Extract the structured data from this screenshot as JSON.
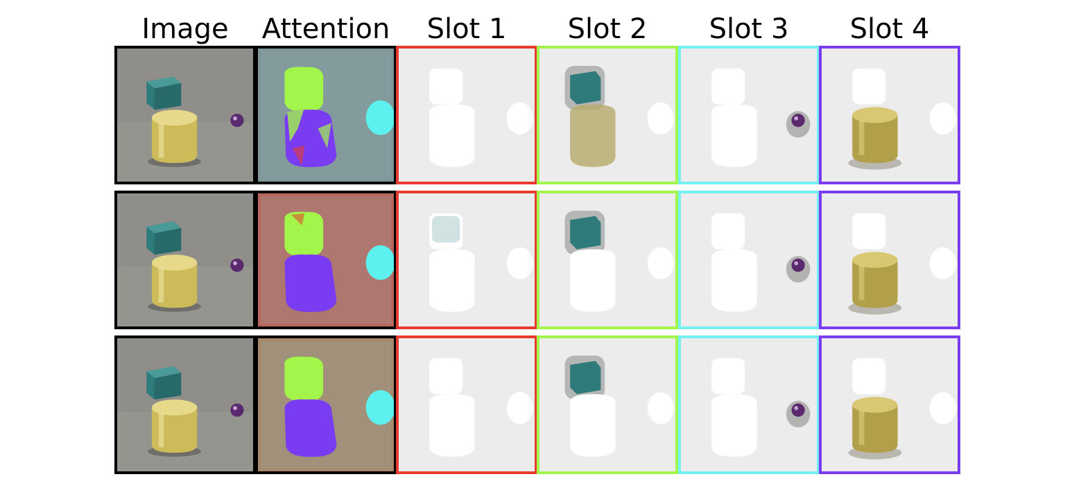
{
  "columns": [
    {
      "id": "image",
      "label": "Image",
      "frame_color": "#000000"
    },
    {
      "id": "attention",
      "label": "Attention",
      "frame_color": "#000000"
    },
    {
      "id": "slot1",
      "label": "Slot 1",
      "frame_color": "#e63b2e"
    },
    {
      "id": "slot2",
      "label": "Slot 2",
      "frame_color": "#a3f54b"
    },
    {
      "id": "slot3",
      "label": "Slot 3",
      "frame_color": "#72f0f2"
    },
    {
      "id": "slot4",
      "label": "Slot 4",
      "frame_color": "#7a3cf0"
    }
  ],
  "rows": 3,
  "colors": {
    "scene_bg": "#8f8e8a",
    "cube": "#2f7a7a",
    "cylinder": "#cdbb5a",
    "sphere": "#5b2a6e",
    "mask_white": "#ffffff",
    "slot_bg": "#e4e4e4",
    "att_bg_row1": "#7f9599",
    "att_bg_row2": "#b8665e",
    "att_bg_row3": "#a8876b",
    "att_lime": "#a3f54b",
    "att_purple": "#7a3cf0",
    "att_cyan": "#5cf0ef"
  }
}
